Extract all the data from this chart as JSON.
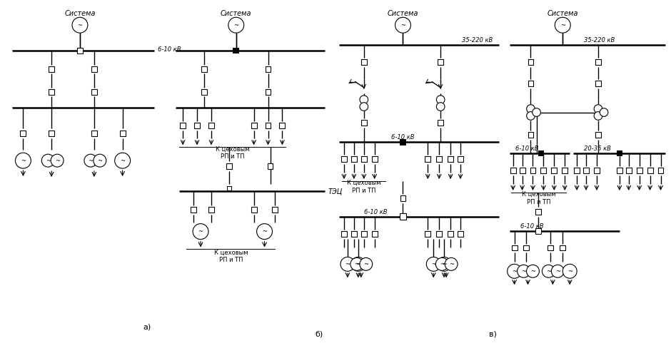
{
  "background_color": "#ffffff",
  "line_color": "#000000",
  "labels": {
    "sistema": "Система",
    "6_10kv": "6-10 кВ",
    "35_220kv": "35-220 кВ",
    "20_35kv": "20-35 кВ",
    "k_tsexovym": "К цеховым\nРП и ТП",
    "tec": "ТЭЦ",
    "a": "а)",
    "b": "б)",
    "v": "в)"
  },
  "font_size": 7
}
